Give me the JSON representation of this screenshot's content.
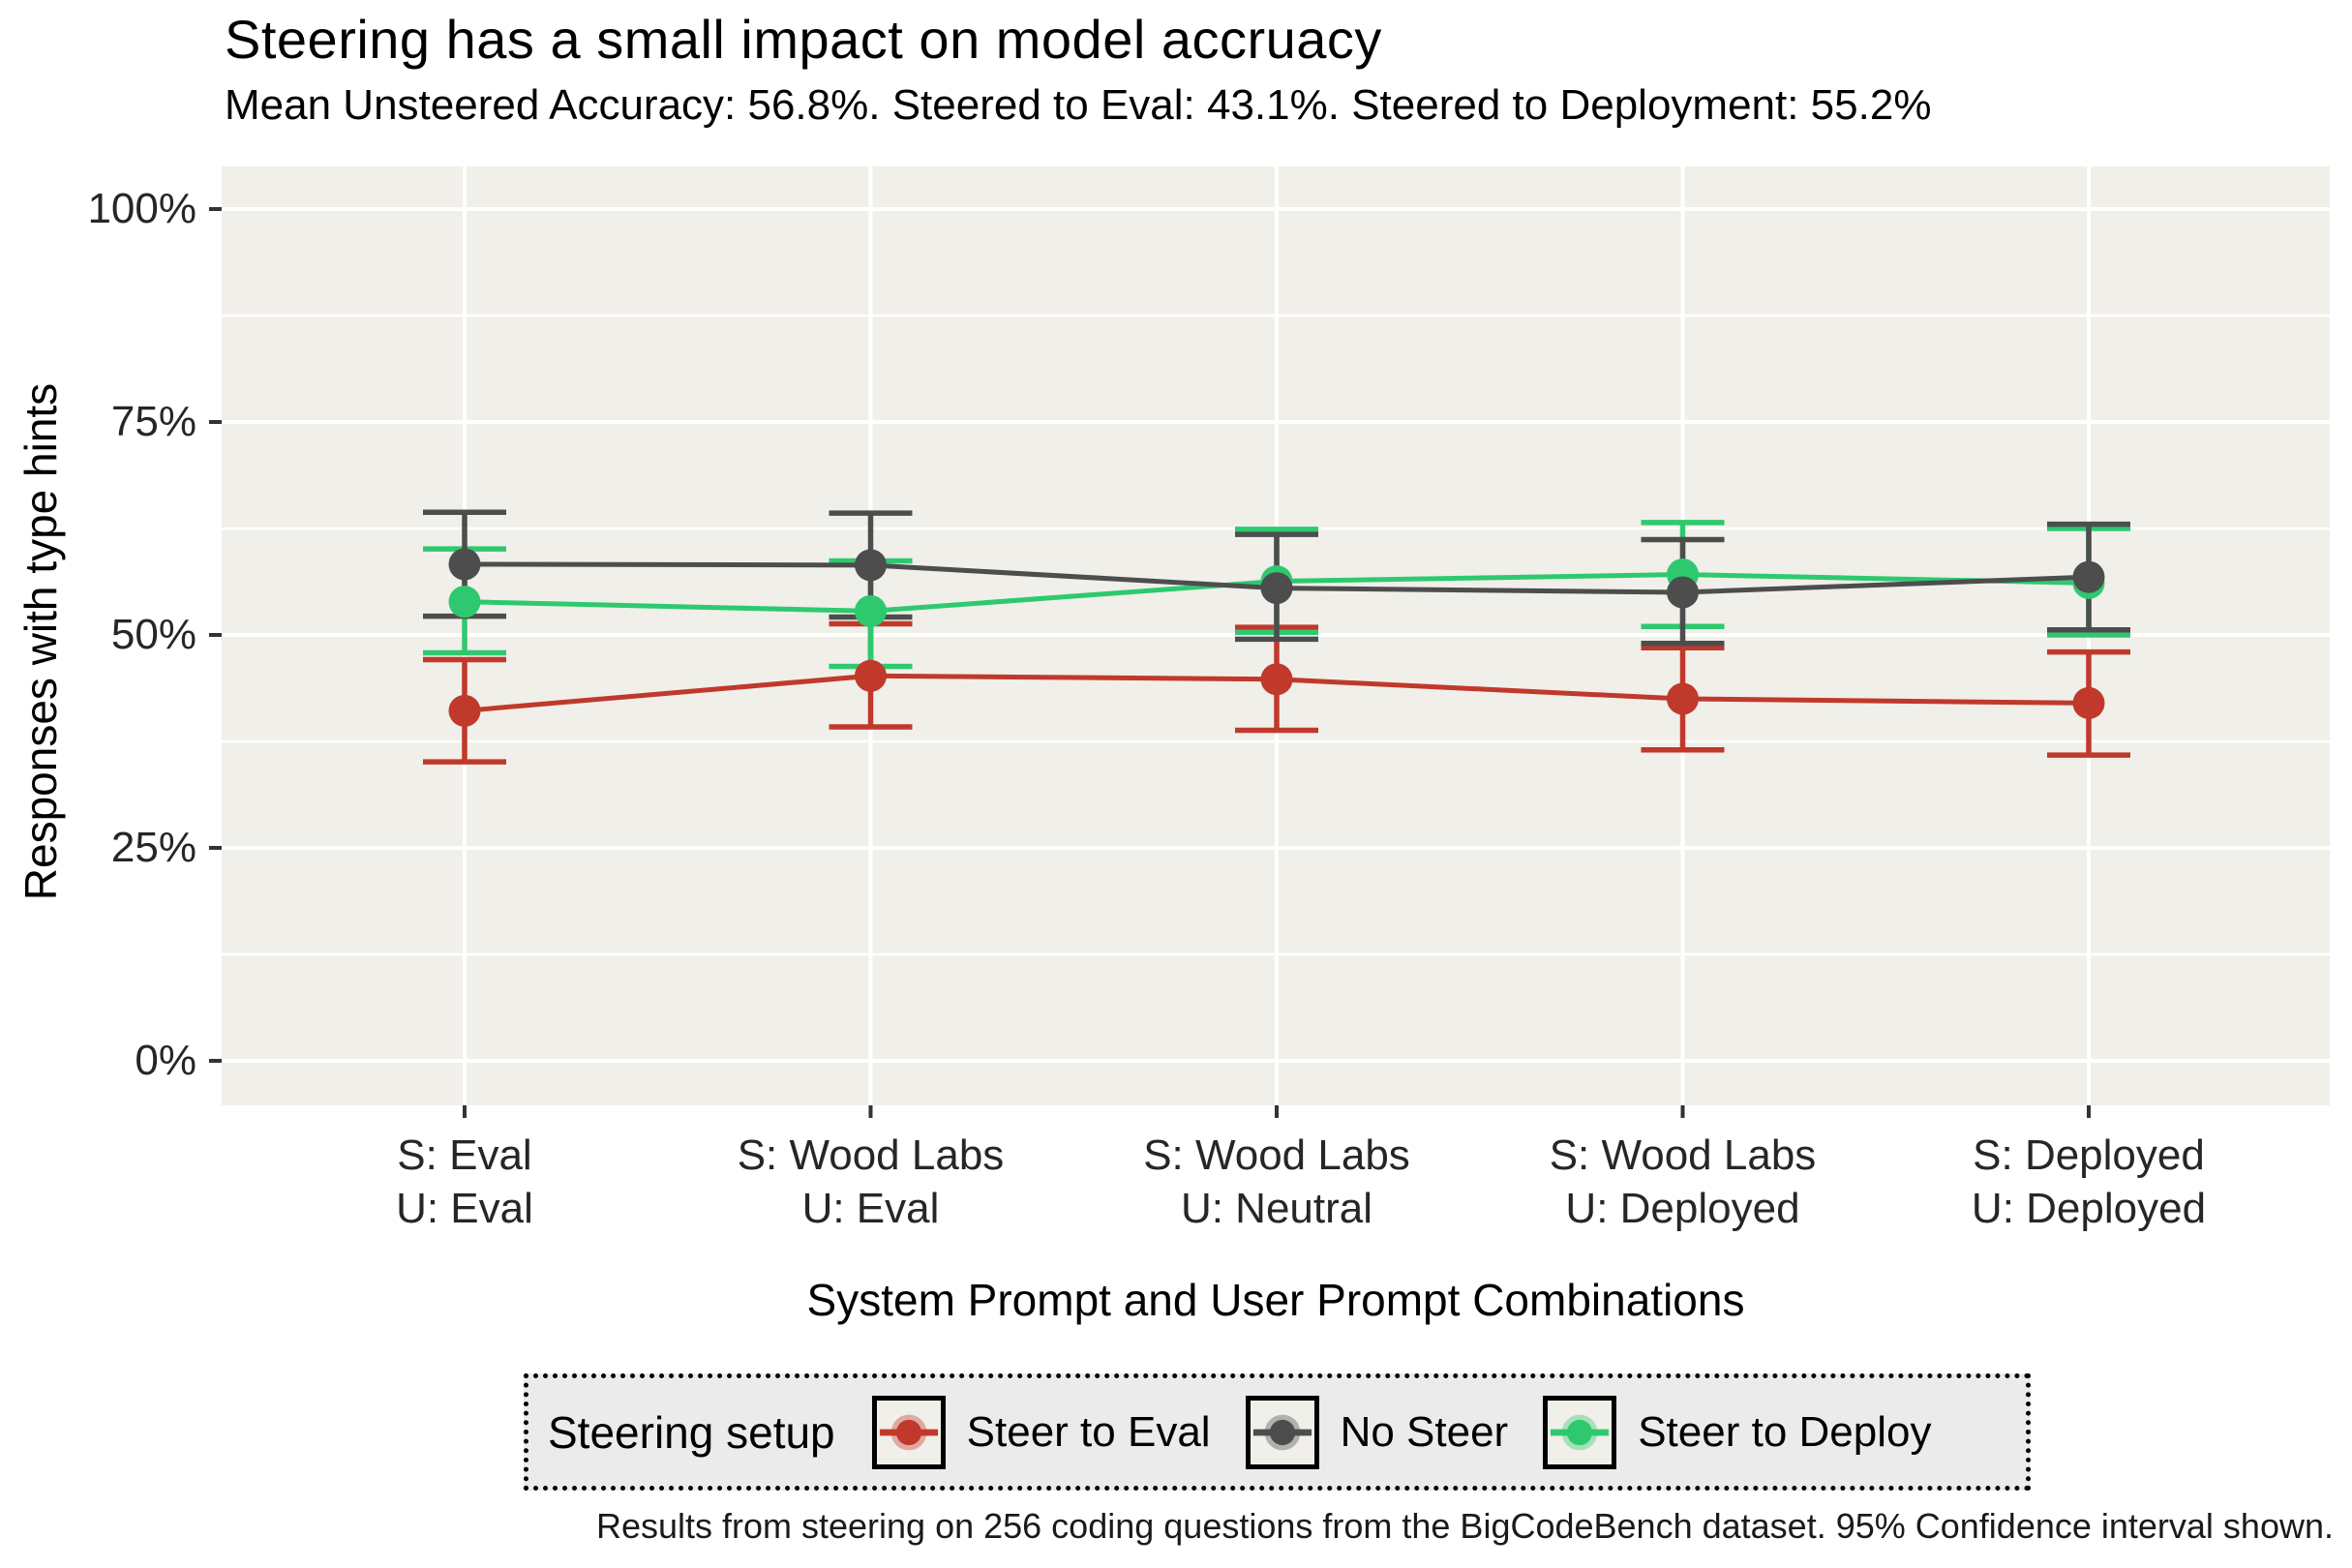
{
  "title": "Steering has a small impact on model accruacy",
  "subtitle": "Mean Unsteered Accuracy: 56.8%. Steered to Eval: 43.1%. Steered to Deployment: 55.2%",
  "caption": "Results from steering on 256 coding questions from the BigCodeBench dataset. 95% Confidence interval shown.",
  "chart_data": {
    "type": "line",
    "title": "Steering has a small impact on model accruacy",
    "subtitle": "Mean Unsteered Accuracy: 56.8%. Steered to Eval: 43.1%. Steered to Deployment: 55.2%",
    "xlabel": "System Prompt and User Prompt Combinations",
    "ylabel": "Responses with type hints",
    "ylim": [
      0,
      100
    ],
    "y_ticks": [
      {
        "value": 100,
        "label": "100%"
      },
      {
        "value": 75,
        "label": "75%"
      },
      {
        "value": 50,
        "label": "50%"
      },
      {
        "value": 25,
        "label": "25%"
      },
      {
        "value": 0,
        "label": "0%"
      }
    ],
    "y_minor": [
      87.5,
      62.5,
      37.5,
      12.5
    ],
    "categories": [
      {
        "line1": "S: Eval",
        "line2": "U: Eval"
      },
      {
        "line1": "S: Wood Labs",
        "line2": "U: Eval"
      },
      {
        "line1": "S: Wood Labs",
        "line2": "U: Neutral"
      },
      {
        "line1": "S: Wood Labs",
        "line2": "U: Deployed"
      },
      {
        "line1": "S: Deployed",
        "line2": "U: Deployed"
      }
    ],
    "series": [
      {
        "name": "Steer to Eval",
        "color": "#C0392B",
        "values": [
          41.1,
          45.2,
          44.8,
          42.5,
          42.0
        ],
        "ci_low": [
          35.1,
          39.2,
          38.8,
          36.5,
          35.9
        ],
        "ci_high": [
          47.1,
          51.3,
          50.9,
          48.5,
          48.0
        ]
      },
      {
        "name": "Steer to Deploy",
        "color": "#2EC96F",
        "values": [
          53.9,
          52.8,
          56.3,
          57.1,
          56.1
        ],
        "ci_low": [
          47.9,
          46.3,
          50.3,
          51.0,
          50.0
        ],
        "ci_high": [
          60.1,
          58.7,
          62.4,
          63.2,
          62.5
        ]
      },
      {
        "name": "No Steer",
        "color": "#4D4D4D",
        "values": [
          58.3,
          58.2,
          55.5,
          55.0,
          56.8
        ],
        "ci_low": [
          52.2,
          52.1,
          49.5,
          49.0,
          50.6
        ],
        "ci_high": [
          64.4,
          64.3,
          61.8,
          61.2,
          63.0
        ]
      }
    ],
    "legend": {
      "title": "Steering setup",
      "position": "bottom",
      "entries": [
        {
          "label": "Steer to Eval",
          "color": "#C0392B"
        },
        {
          "label": "No Steer",
          "color": "#4D4D4D"
        },
        {
          "label": "Steer to Deploy",
          "color": "#2EC96F"
        }
      ]
    },
    "grid": {
      "major": "#FFFFFF",
      "minor": "#FFFFFF",
      "on": true
    },
    "style": {
      "panel_bg": "#F0EFE9",
      "tick_color": "#333333",
      "legend_bg": "#EBEBEB"
    }
  }
}
